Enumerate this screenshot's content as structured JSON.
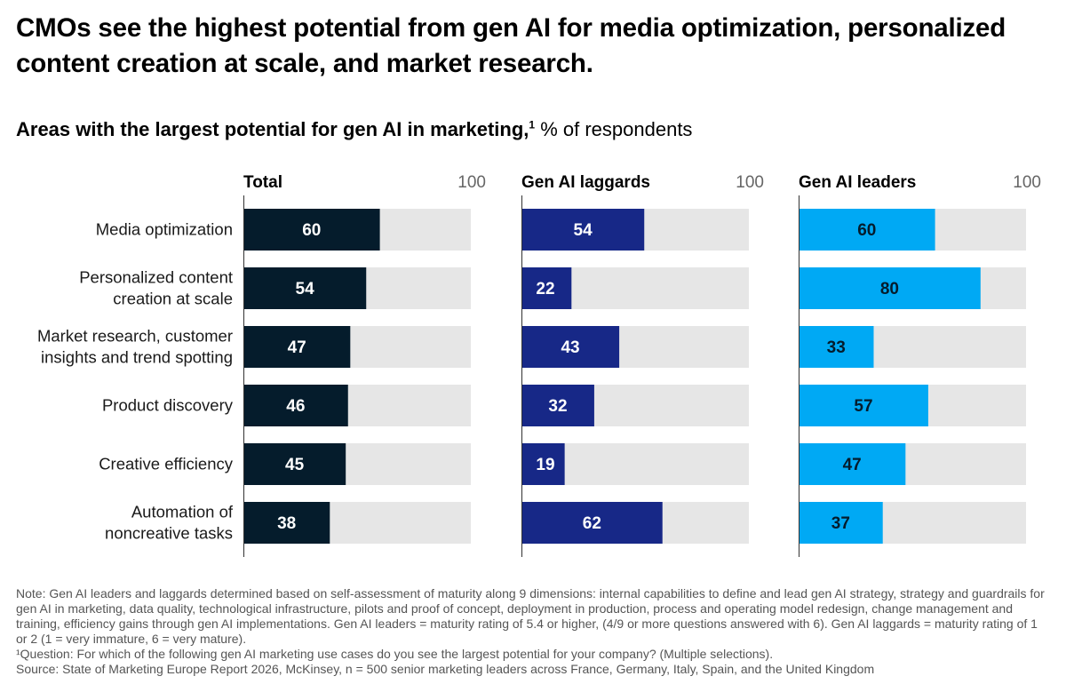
{
  "title": "CMOs see the highest potential from gen AI for media optimization, personalized content creation at scale, and market research.",
  "subtitle": {
    "bold": "Areas with the largest potential for gen AI in marketing,",
    "footnote_mark": "1",
    "rest": " % of respondents"
  },
  "chart_data": {
    "type": "bar",
    "orientation": "horizontal",
    "title": "Areas with the largest potential for gen AI in marketing, % of respondents",
    "categories": [
      [
        "Media optimization"
      ],
      [
        "Personalized content",
        "creation at scale"
      ],
      [
        "Market research, customer",
        "insights and trend spotting"
      ],
      [
        "Product discovery"
      ],
      [
        "Creative efficiency"
      ],
      [
        "Automation of",
        "noncreative tasks"
      ]
    ],
    "xlim": [
      0,
      100
    ],
    "max_label": "100",
    "series": [
      {
        "name": "Total",
        "color": "#051c2c",
        "label_color": "#ffffff",
        "values": [
          60,
          54,
          47,
          46,
          45,
          38
        ]
      },
      {
        "name": "Gen AI laggards",
        "color": "#172887",
        "label_color": "#ffffff",
        "values": [
          54,
          22,
          43,
          32,
          19,
          62
        ]
      },
      {
        "name": "Gen AI leaders",
        "color": "#00a9f4",
        "label_color": "#051c2c",
        "values": [
          60,
          80,
          33,
          57,
          47,
          37
        ]
      }
    ],
    "track_color": "#e6e6e6"
  },
  "notes": {
    "note": "Note:  Gen AI leaders and laggards determined based on self-assessment of maturity along 9 dimensions: internal capabilities to define and lead gen AI strategy, strategy and guardrails for gen AI in marketing, data quality, technological infrastructure, pilots and proof of concept, deployment in production, process and operating model redesign, change management and training, efficiency gains through gen AI implementations. Gen AI leaders = maturity rating of 5.4 or higher, (4/9 or more questions answered with 6). Gen AI laggards = maturity rating of 1 or 2 (1 = very immature, 6 = very mature).",
    "question": "¹Question: For which of the following gen AI marketing use cases do you see the largest potential for your company? (Multiple selections).",
    "source": "Source: State of Marketing Europe Report 2026, McKinsey, n = 500 senior marketing leaders across France, Germany, Italy, Spain, and the United Kingdom"
  }
}
